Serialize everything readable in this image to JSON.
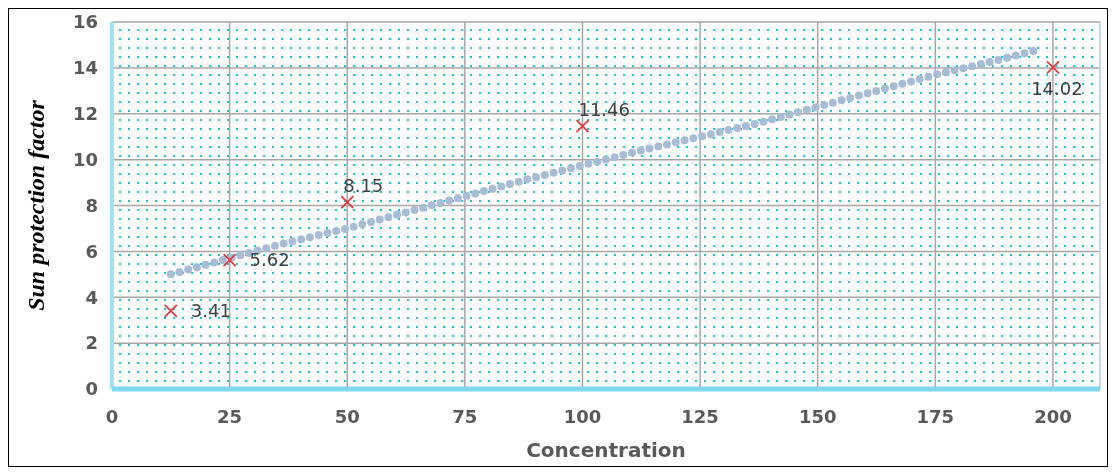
{
  "chart_data": {
    "type": "scatter",
    "xlabel": "Concentration",
    "ylabel": "Sun protection factor",
    "xlim": [
      0,
      210
    ],
    "xticks": [
      0,
      25,
      50,
      75,
      100,
      125,
      150,
      175,
      200
    ],
    "ylim": [
      0,
      16
    ],
    "yticks": [
      0,
      2,
      4,
      6,
      8,
      10,
      12,
      14,
      16
    ],
    "grid": true,
    "series": [
      {
        "type": "line",
        "color": "#a9bcd6",
        "line_style": "dotted",
        "marker": "none",
        "x": [
          12.5,
          25,
          37.5,
          50,
          62.5,
          75,
          87.5,
          100,
          112.5,
          125,
          137.5,
          150,
          162.5,
          175,
          187.5,
          197
        ],
        "values": [
          5.0,
          5.7,
          6.4,
          7.0,
          7.7,
          8.4,
          9.1,
          9.75,
          10.4,
          11.0,
          11.6,
          12.3,
          13.0,
          13.7,
          14.3,
          14.8
        ]
      },
      {
        "color": "#e03c3c",
        "marker": "cross",
        "data_labels": true,
        "x": [
          12.5,
          25,
          50,
          100,
          200
        ],
        "values": [
          3.41,
          5.62,
          8.15,
          11.46,
          14.02
        ]
      }
    ]
  }
}
